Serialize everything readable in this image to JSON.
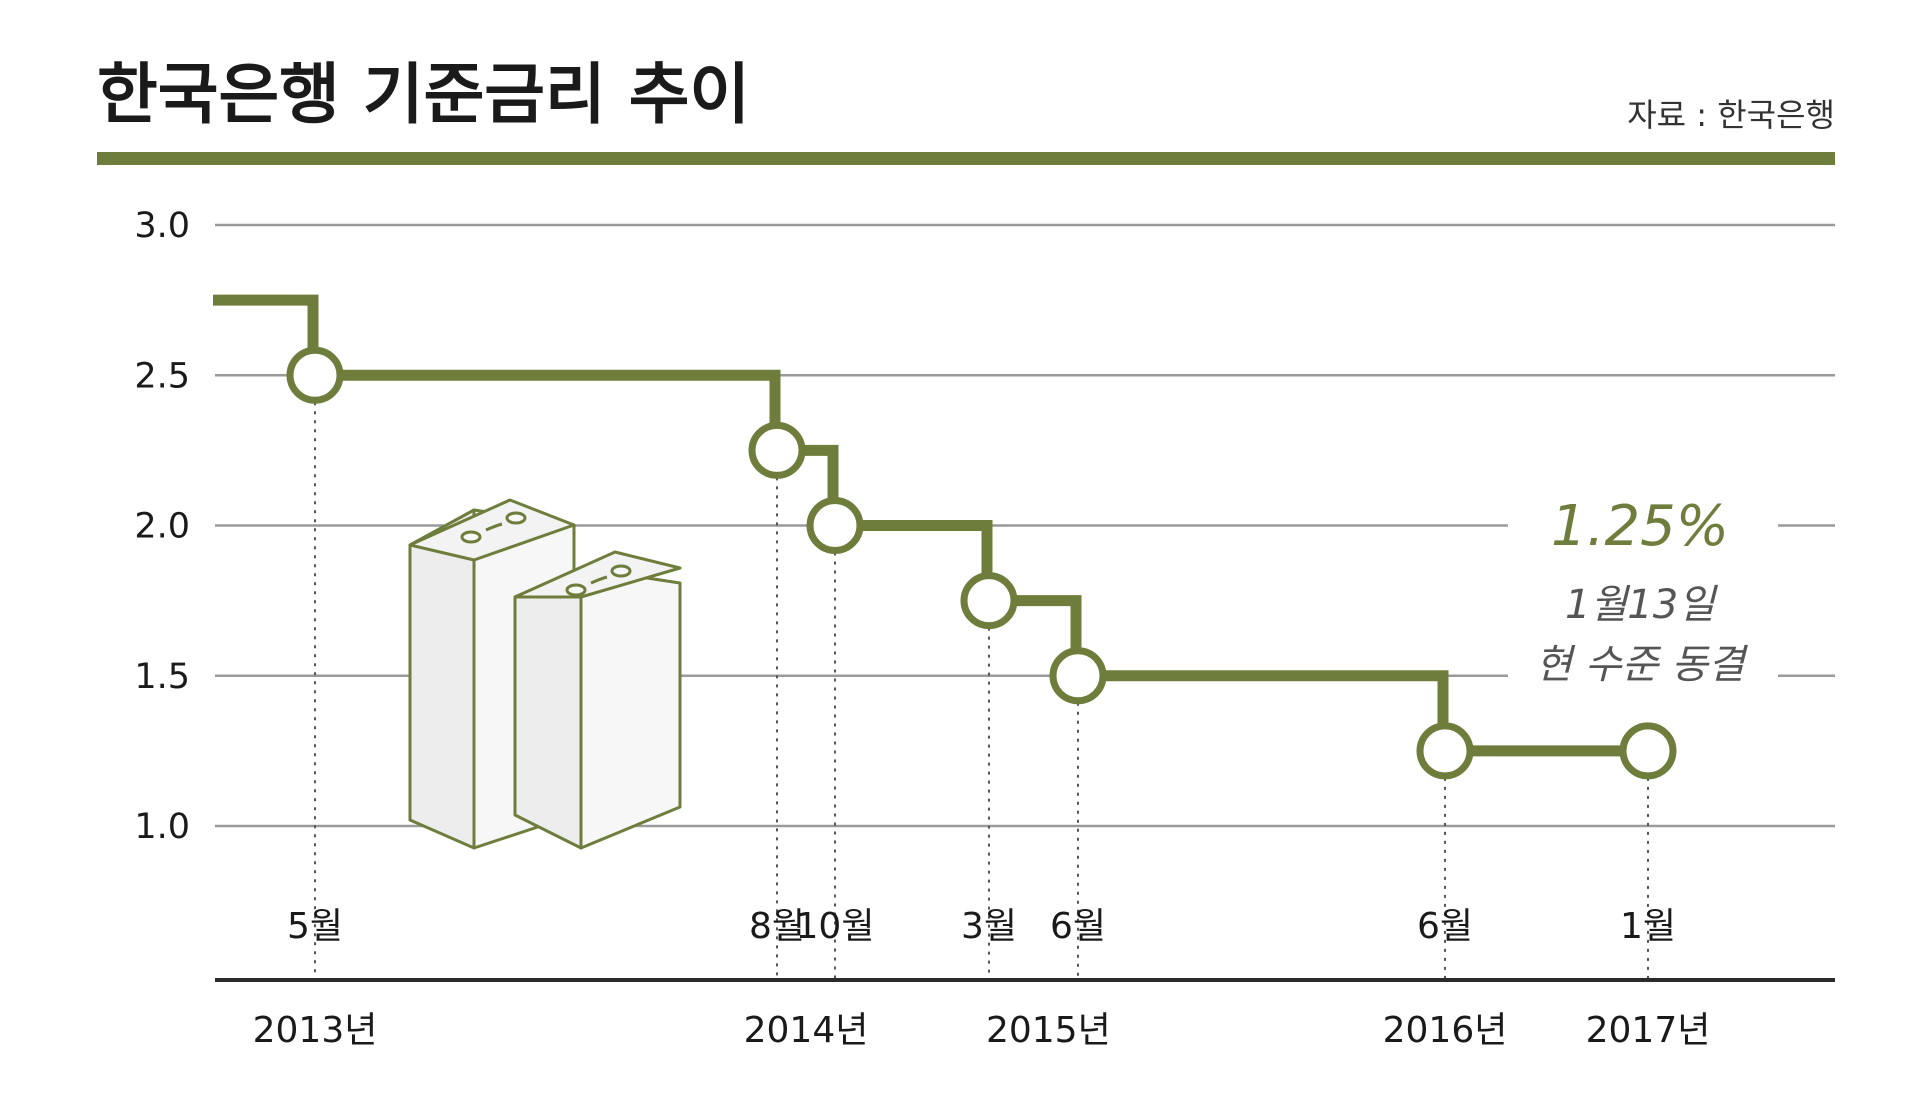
{
  "title": "한국은행 기준금리 추이",
  "source": "자료 : 한국은행",
  "colors": {
    "accent": "#6f7d3c",
    "grid": "#9a9a9a",
    "axis": "#2b2b2b",
    "building_fill": "#f3f3f3"
  },
  "chart_data": {
    "type": "line",
    "step": true,
    "ylim": [
      1.0,
      3.0
    ],
    "yticks": [
      "3.0",
      "2.5",
      "2.0",
      "1.5",
      "1.0"
    ],
    "ytick_values": [
      3.0,
      2.5,
      2.0,
      1.5,
      1.0
    ],
    "grid": true,
    "series": [
      {
        "points": [
          {
            "date": "2013-01",
            "value": 2.75
          },
          {
            "date": "2013-05",
            "value": 2.5
          },
          {
            "date": "2014-08",
            "value": 2.25
          },
          {
            "date": "2014-10",
            "value": 2.0
          },
          {
            "date": "2015-03",
            "value": 1.75
          },
          {
            "date": "2015-06",
            "value": 1.5
          },
          {
            "date": "2016-06",
            "value": 1.25
          },
          {
            "date": "2017-01",
            "value": 1.25
          }
        ]
      }
    ],
    "marker_labels": [
      {
        "date": "2013-05",
        "label": "5월"
      },
      {
        "date": "2014-08",
        "label": "8월"
      },
      {
        "date": "2014-10",
        "label": "10월"
      },
      {
        "date": "2015-03",
        "label": "3월"
      },
      {
        "date": "2015-06",
        "label": "6월"
      },
      {
        "date": "2016-06",
        "label": "6월"
      },
      {
        "date": "2017-01",
        "label": "1월"
      }
    ],
    "year_labels": [
      {
        "date": "2013-05",
        "label": "2013년"
      },
      {
        "date": "2014-09",
        "label": "2014년"
      },
      {
        "date": "2015-05",
        "label": "2015년"
      },
      {
        "date": "2016-06",
        "label": "2016년"
      },
      {
        "date": "2017-01",
        "label": "2017년"
      }
    ],
    "annotation": {
      "value_text": "1.25%",
      "line1": "1월13일",
      "line2": "현 수준 동결"
    }
  }
}
